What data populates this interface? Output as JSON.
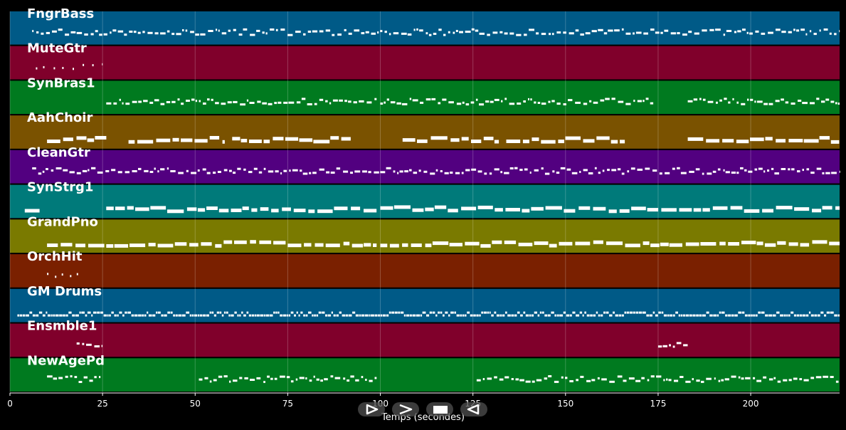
{
  "x_axis": {
    "label": "Temps (secondes)",
    "range": [
      0,
      224
    ],
    "ticks": [
      0,
      25,
      50,
      75,
      100,
      125,
      150,
      175,
      200
    ]
  },
  "colors": {
    "background": "#000000",
    "grid": "#ffffff",
    "note": "#ffffff"
  },
  "tracks": [
    {
      "name": "FngrBass",
      "color": "#005a87",
      "style": "thin",
      "segments": [
        [
          6,
          224
        ]
      ]
    },
    {
      "name": "MuteGtr",
      "color": "#80002b",
      "style": "dots",
      "segments": [
        [
          7,
          25
        ]
      ]
    },
    {
      "name": "SynBras1",
      "color": "#007a1f",
      "style": "thin",
      "segments": [
        [
          26,
          99
        ],
        [
          100,
          174
        ],
        [
          183,
          224
        ]
      ]
    },
    {
      "name": "AahChoir",
      "color": "#7a5200",
      "style": "thick",
      "segments": [
        [
          10,
          26
        ],
        [
          32,
          58
        ],
        [
          60,
          92
        ],
        [
          106,
          132
        ],
        [
          134,
          166
        ],
        [
          183,
          224
        ]
      ]
    },
    {
      "name": "CleanGtr",
      "color": "#520080",
      "style": "thin",
      "segments": [
        [
          6,
          224
        ]
      ]
    },
    {
      "name": "SynStrg1",
      "color": "#007a7a",
      "style": "thick",
      "segments": [
        [
          4,
          8
        ],
        [
          26,
          99
        ],
        [
          100,
          224
        ]
      ]
    },
    {
      "name": "GrandPno",
      "color": "#7a7a00",
      "style": "thick",
      "segments": [
        [
          10,
          26
        ],
        [
          26,
          99
        ],
        [
          100,
          224
        ]
      ]
    },
    {
      "name": "OrchHit",
      "color": "#7a2000",
      "style": "dots",
      "segments": [
        [
          10,
          19
        ]
      ]
    },
    {
      "name": "GM Drums",
      "color": "#005a87",
      "style": "dense",
      "segments": [
        [
          2,
          224
        ]
      ]
    },
    {
      "name": "Ensmble1",
      "color": "#80002b",
      "style": "thin",
      "segments": [
        [
          18,
          25
        ],
        [
          175,
          183
        ]
      ]
    },
    {
      "name": "NewAgePd",
      "color": "#007a1f",
      "style": "thin",
      "segments": [
        [
          10,
          25
        ],
        [
          51,
          99
        ],
        [
          126,
          224
        ]
      ]
    }
  ],
  "controls": [
    {
      "name": "play-from-start-button",
      "icon": "play-from-start-icon"
    },
    {
      "name": "forward-button",
      "icon": "forward-icon"
    },
    {
      "name": "stop-button",
      "icon": "stop-icon"
    },
    {
      "name": "rewind-button",
      "icon": "rewind-icon"
    }
  ]
}
